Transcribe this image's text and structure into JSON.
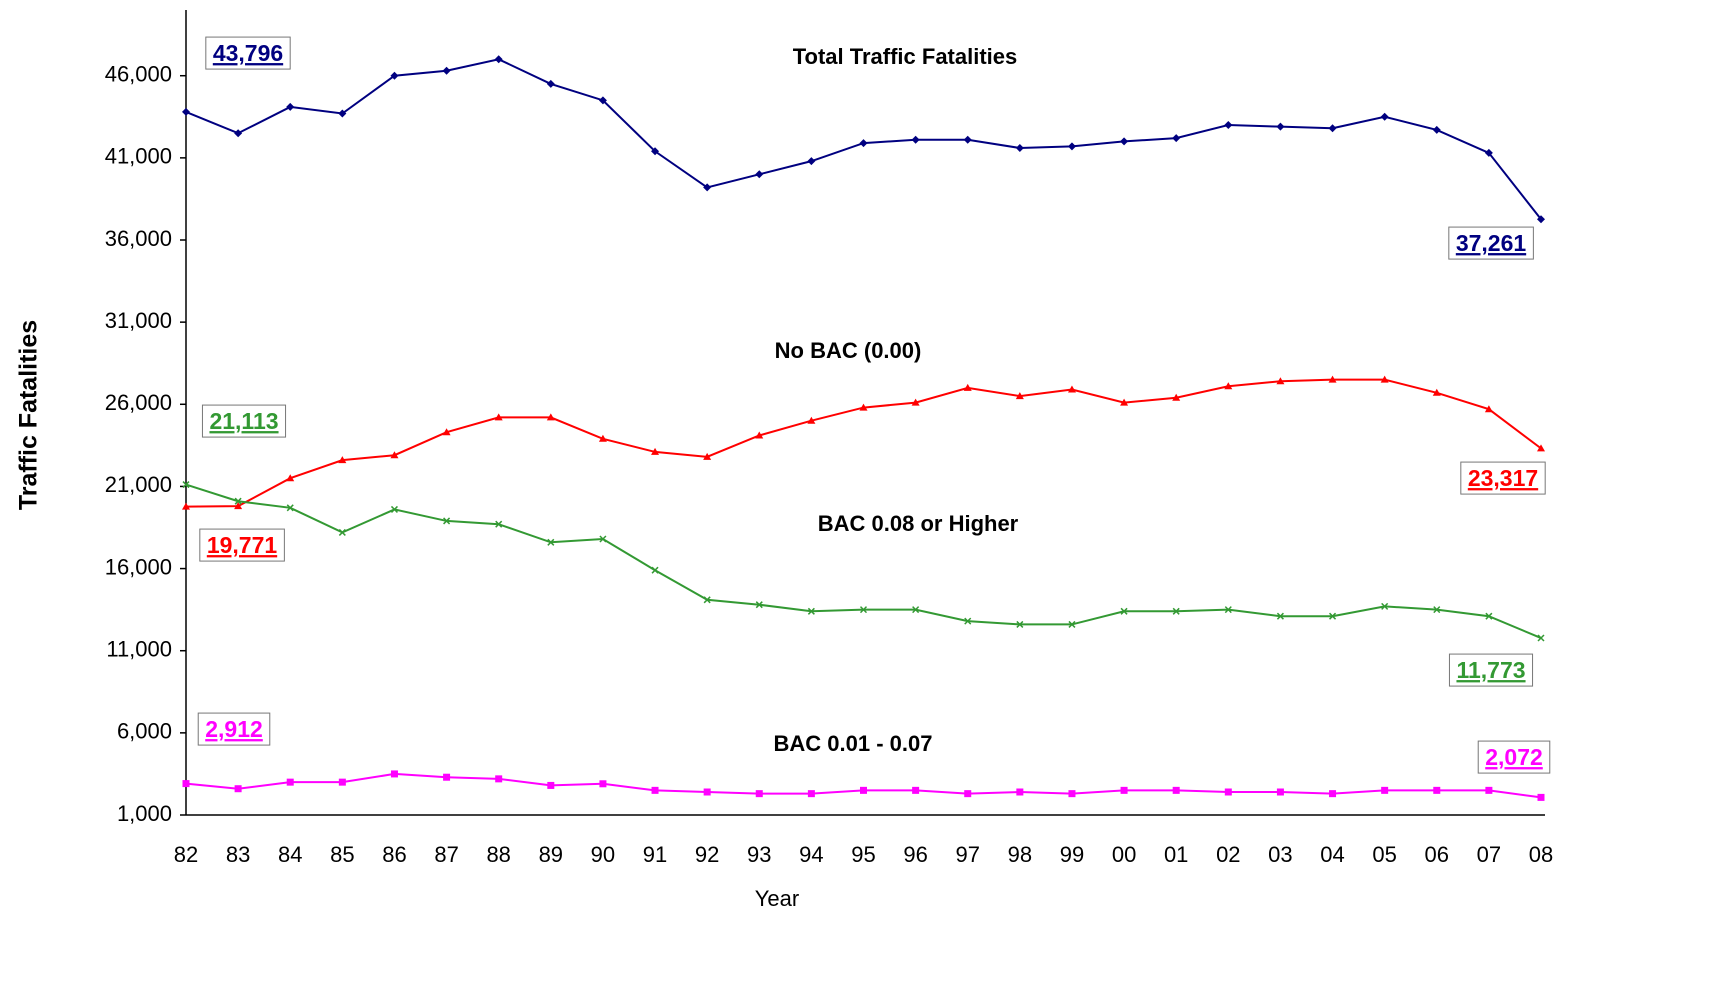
{
  "chart_data": {
    "type": "line",
    "x_label": "Year",
    "y_label": "Traffic Fatalities",
    "categories": [
      "82",
      "83",
      "84",
      "85",
      "86",
      "87",
      "88",
      "89",
      "90",
      "91",
      "92",
      "93",
      "94",
      "95",
      "96",
      "97",
      "98",
      "99",
      "00",
      "01",
      "02",
      "03",
      "04",
      "05",
      "06",
      "07",
      "08"
    ],
    "ylim": [
      1000,
      50000
    ],
    "yticks": [
      {
        "value": 1000,
        "label": "1,000"
      },
      {
        "value": 6000,
        "label": "6,000"
      },
      {
        "value": 11000,
        "label": "11,000"
      },
      {
        "value": 16000,
        "label": "16,000"
      },
      {
        "value": 21000,
        "label": "21,000"
      },
      {
        "value": 26000,
        "label": "26,000"
      },
      {
        "value": 31000,
        "label": "31,000"
      },
      {
        "value": 36000,
        "label": "36,000"
      },
      {
        "value": 41000,
        "label": "41,000"
      },
      {
        "value": 46000,
        "label": "46,000"
      }
    ],
    "grid": false,
    "series": [
      {
        "name": "Total Traffic Fatalities",
        "color": "#000080",
        "marker": "diamond",
        "values": [
          43796,
          42500,
          44100,
          43700,
          46000,
          46300,
          47000,
          45500,
          44500,
          41400,
          39200,
          40000,
          40800,
          41900,
          42100,
          42100,
          41600,
          41700,
          42000,
          42200,
          43000,
          42900,
          42800,
          43500,
          42700,
          41300,
          37261
        ],
        "value_labels": [
          "43,796",
          null,
          null,
          null,
          null,
          null,
          null,
          null,
          null,
          null,
          null,
          null,
          null,
          null,
          null,
          null,
          null,
          null,
          null,
          null,
          null,
          null,
          null,
          null,
          null,
          null,
          "37,261"
        ]
      },
      {
        "name": "No BAC (0.00)",
        "color": "#ff0000",
        "marker": "triangle",
        "values": [
          19771,
          19800,
          21500,
          22600,
          22900,
          24300,
          25200,
          25200,
          23900,
          23100,
          22800,
          24100,
          25000,
          25800,
          26100,
          27000,
          26500,
          26900,
          26100,
          26400,
          27100,
          27400,
          27500,
          27500,
          26700,
          25700,
          23317
        ],
        "value_labels": [
          "19,771",
          null,
          null,
          null,
          null,
          null,
          null,
          null,
          null,
          null,
          null,
          null,
          null,
          null,
          null,
          null,
          null,
          null,
          null,
          null,
          null,
          null,
          null,
          null,
          null,
          null,
          "23,317"
        ]
      },
      {
        "name": "BAC 0.08 or Higher",
        "color": "#339933",
        "marker": "x",
        "values": [
          21113,
          20100,
          19700,
          18200,
          19600,
          18900,
          18700,
          17600,
          17800,
          15900,
          14100,
          13800,
          13400,
          13500,
          13500,
          12800,
          12600,
          12600,
          13400,
          13400,
          13500,
          13100,
          13100,
          13700,
          13500,
          13100,
          11773
        ],
        "value_labels": [
          "21,113",
          null,
          null,
          null,
          null,
          null,
          null,
          null,
          null,
          null,
          null,
          null,
          null,
          null,
          null,
          null,
          null,
          null,
          null,
          null,
          null,
          null,
          null,
          null,
          null,
          null,
          "11,773"
        ]
      },
      {
        "name": "BAC 0.01 - 0.07",
        "color": "#ff00ff",
        "marker": "square",
        "values": [
          2912,
          2600,
          3000,
          3000,
          3500,
          3300,
          3200,
          2800,
          2900,
          2500,
          2400,
          2300,
          2300,
          2500,
          2500,
          2300,
          2400,
          2300,
          2500,
          2500,
          2400,
          2400,
          2300,
          2500,
          2500,
          2500,
          2072
        ],
        "value_labels": [
          "2,912",
          null,
          null,
          null,
          null,
          null,
          null,
          null,
          null,
          null,
          null,
          null,
          null,
          null,
          null,
          null,
          null,
          null,
          null,
          null,
          null,
          null,
          null,
          null,
          null,
          null,
          "2,072"
        ]
      }
    ]
  }
}
